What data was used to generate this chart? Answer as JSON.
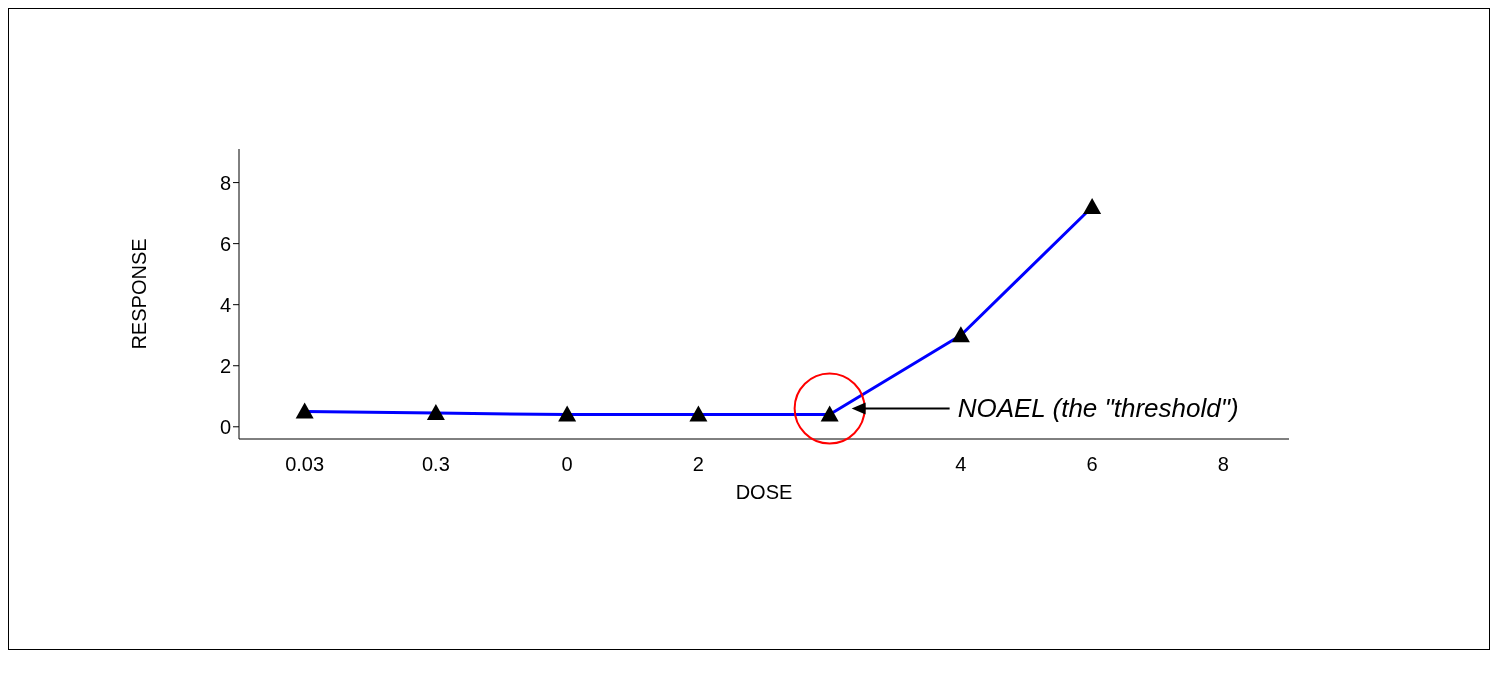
{
  "chart_data": {
    "type": "line",
    "xlabel": "DOSE",
    "ylabel": "RESPONSE",
    "categories": [
      "0.03",
      "0.3",
      "0",
      "2",
      null,
      "4",
      "6",
      "8"
    ],
    "series": [
      {
        "color": "#0000ff",
        "values": [
          0.5,
          0.45,
          0.4,
          0.4,
          0.4,
          3.0,
          7.2,
          null
        ]
      }
    ],
    "ylim": [
      -0.4,
      9.1
    ],
    "yticks": [
      0,
      2,
      4,
      6,
      8
    ],
    "grid": false,
    "legend": false,
    "marker": "triangle",
    "line_style": "solid",
    "annotations": [
      "NOAEL (the \"threshold\")"
    ]
  }
}
